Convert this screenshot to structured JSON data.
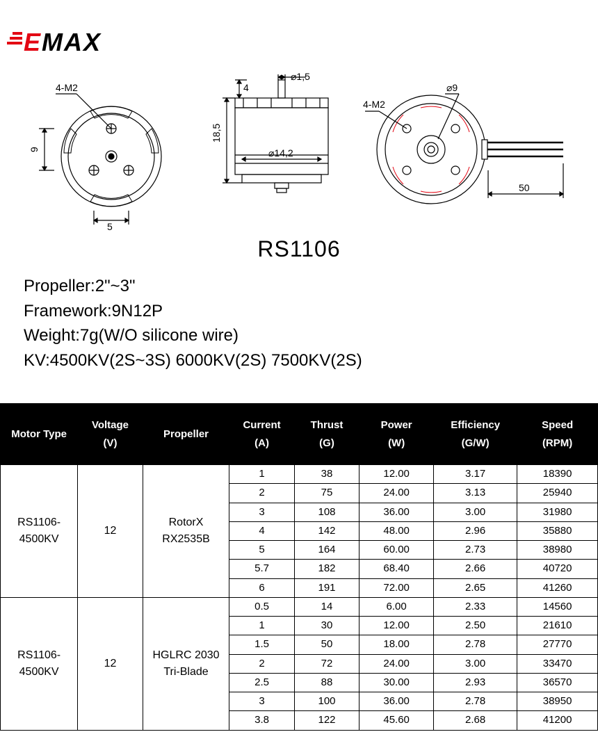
{
  "logo": {
    "text_red": "E",
    "text_black": "MAX"
  },
  "diagram_labels": {
    "view1": {
      "hole": "4-M2",
      "height": "9",
      "width": "5"
    },
    "view2": {
      "top_gap": "4",
      "shaft": "⌀1,5",
      "height": "18,5",
      "diameter": "⌀14,2"
    },
    "view3": {
      "shaft": "⌀9",
      "hole": "4-M2",
      "wire": "50"
    }
  },
  "model_title": "RS1106",
  "specs": {
    "propeller": "Propeller:2\"~3\"",
    "framework": "Framework:9N12P",
    "weight": "Weight:7g(W/O silicone wire)",
    "kv": "KV:4500KV(2S~3S)  6000KV(2S)  7500KV(2S)"
  },
  "table": {
    "headers": {
      "motor": "Motor Type",
      "voltage_l1": "Voltage",
      "voltage_l2": "(V)",
      "propeller": "Propeller",
      "current_l1": "Current",
      "current_l2": "(A)",
      "thrust_l1": "Thrust",
      "thrust_l2": "(G)",
      "power_l1": "Power",
      "power_l2": "(W)",
      "efficiency_l1": "Efficiency",
      "efficiency_l2": "(G/W)",
      "speed_l1": "Speed",
      "speed_l2": "(RPM)"
    },
    "groups": [
      {
        "motor_l1": "RS1106-",
        "motor_l2": "4500KV",
        "voltage": "12",
        "prop_l1": "RotorX",
        "prop_l2": "RX2535B",
        "rows": [
          {
            "current": "1",
            "thrust": "38",
            "power": "12.00",
            "eff": "3.17",
            "speed": "18390"
          },
          {
            "current": "2",
            "thrust": "75",
            "power": "24.00",
            "eff": "3.13",
            "speed": "25940"
          },
          {
            "current": "3",
            "thrust": "108",
            "power": "36.00",
            "eff": "3.00",
            "speed": "31980"
          },
          {
            "current": "4",
            "thrust": "142",
            "power": "48.00",
            "eff": "2.96",
            "speed": "35880"
          },
          {
            "current": "5",
            "thrust": "164",
            "power": "60.00",
            "eff": "2.73",
            "speed": "38980"
          },
          {
            "current": "5.7",
            "thrust": "182",
            "power": "68.40",
            "eff": "2.66",
            "speed": "40720"
          },
          {
            "current": "6",
            "thrust": "191",
            "power": "72.00",
            "eff": "2.65",
            "speed": "41260"
          }
        ]
      },
      {
        "motor_l1": "RS1106-",
        "motor_l2": "4500KV",
        "voltage": "12",
        "prop_l1": "HGLRC 2030",
        "prop_l2": "Tri-Blade",
        "rows": [
          {
            "current": "0.5",
            "thrust": "14",
            "power": "6.00",
            "eff": "2.33",
            "speed": "14560"
          },
          {
            "current": "1",
            "thrust": "30",
            "power": "12.00",
            "eff": "2.50",
            "speed": "21610"
          },
          {
            "current": "1.5",
            "thrust": "50",
            "power": "18.00",
            "eff": "2.78",
            "speed": "27770"
          },
          {
            "current": "2",
            "thrust": "72",
            "power": "24.00",
            "eff": "3.00",
            "speed": "33470"
          },
          {
            "current": "2.5",
            "thrust": "88",
            "power": "30.00",
            "eff": "2.93",
            "speed": "36570"
          },
          {
            "current": "3",
            "thrust": "100",
            "power": "36.00",
            "eff": "2.78",
            "speed": "38950"
          },
          {
            "current": "3.8",
            "thrust": "122",
            "power": "45.60",
            "eff": "2.68",
            "speed": "41200"
          }
        ]
      }
    ]
  },
  "colors": {
    "black": "#000000",
    "white": "#ffffff",
    "red": "#e30613",
    "watermark": "rgba(0,0,0,0.05)"
  }
}
